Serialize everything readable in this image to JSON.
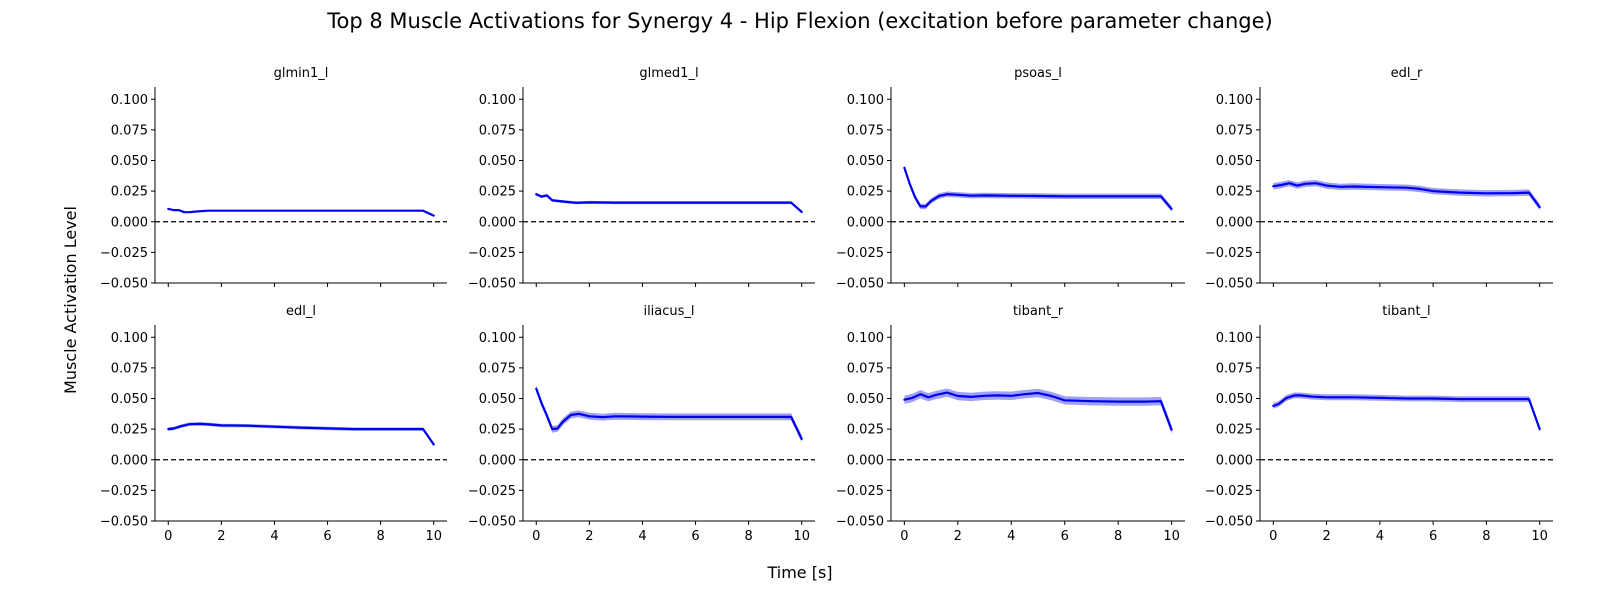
{
  "figure": {
    "title": "Top 8 Muscle Activations for Synergy 4 - Hip Flexion (excitation before parameter change)",
    "xlabel": "Time [s]",
    "ylabel": "Muscle Activation Level"
  },
  "colors": {
    "mean_line": "#0000ee",
    "band": "#8080f0",
    "zero_line": "#000000"
  },
  "chart_data": {
    "type": "line",
    "layout": "2x4 grid of subplots, shared axes",
    "xlim": [
      -0.5,
      10.5
    ],
    "ylim": [
      -0.05,
      0.11
    ],
    "x_ticks": [
      0,
      2,
      4,
      6,
      8,
      10
    ],
    "y_ticks": [
      -0.05,
      -0.025,
      0.0,
      0.025,
      0.05,
      0.075,
      0.1
    ],
    "y_tick_labels": [
      "−0.050",
      "−0.025",
      "0.000",
      "0.025",
      "0.050",
      "0.075",
      "0.100"
    ],
    "reference_line": {
      "y": 0,
      "style": "dashed"
    },
    "panels": [
      {
        "title": "glmin1_l",
        "x": [
          0,
          0.2,
          0.4,
          0.6,
          0.8,
          1.0,
          1.5,
          2,
          3,
          4,
          5,
          6,
          7,
          8,
          9,
          9.6,
          10
        ],
        "mean": [
          0.0105,
          0.0095,
          0.0095,
          0.0078,
          0.0078,
          0.0083,
          0.009,
          0.009,
          0.009,
          0.009,
          0.009,
          0.009,
          0.009,
          0.009,
          0.009,
          0.009,
          0.005
        ],
        "band": 0.0006
      },
      {
        "title": "glmed1_l",
        "x": [
          0,
          0.2,
          0.4,
          0.6,
          0.8,
          1.0,
          1.5,
          2,
          3,
          4,
          5,
          6,
          7,
          8,
          9,
          9.6,
          10
        ],
        "mean": [
          0.0225,
          0.0205,
          0.0215,
          0.0175,
          0.017,
          0.0165,
          0.0155,
          0.0158,
          0.0156,
          0.0156,
          0.0156,
          0.0156,
          0.0156,
          0.0156,
          0.0156,
          0.0156,
          0.008
        ],
        "band": 0.0012
      },
      {
        "title": "psoas_l",
        "x": [
          0,
          0.2,
          0.4,
          0.6,
          0.8,
          1.0,
          1.3,
          1.6,
          2,
          2.5,
          3,
          4,
          5,
          6,
          7,
          8,
          9,
          9.6,
          10
        ],
        "mean": [
          0.044,
          0.031,
          0.02,
          0.0125,
          0.0125,
          0.017,
          0.021,
          0.0225,
          0.022,
          0.0213,
          0.0215,
          0.0212,
          0.021,
          0.0208,
          0.0208,
          0.0208,
          0.0208,
          0.0208,
          0.0105
        ],
        "band": 0.0022
      },
      {
        "title": "edl_r",
        "x": [
          0,
          0.3,
          0.6,
          0.9,
          1.2,
          1.6,
          2,
          2.5,
          3,
          4,
          5,
          5.5,
          6,
          7,
          8,
          9,
          9.6,
          10
        ],
        "mean": [
          0.029,
          0.03,
          0.0315,
          0.0295,
          0.031,
          0.0315,
          0.0295,
          0.0285,
          0.0288,
          0.0282,
          0.0278,
          0.0268,
          0.025,
          0.0238,
          0.0232,
          0.0234,
          0.0238,
          0.012
        ],
        "band": 0.0026
      },
      {
        "title": "edl_l",
        "x": [
          0,
          0.2,
          0.5,
          0.8,
          1.2,
          1.6,
          2,
          3,
          4,
          5,
          6,
          7,
          8,
          9,
          9.6,
          10
        ],
        "mean": [
          0.025,
          0.0255,
          0.0275,
          0.029,
          0.0293,
          0.0288,
          0.028,
          0.0278,
          0.027,
          0.0262,
          0.0256,
          0.025,
          0.025,
          0.025,
          0.025,
          0.0125
        ],
        "band": 0.0014
      },
      {
        "title": "iliacus_l",
        "x": [
          0,
          0.2,
          0.4,
          0.6,
          0.8,
          1.0,
          1.3,
          1.6,
          2,
          2.5,
          3,
          4,
          5,
          6,
          7,
          8,
          9,
          9.6,
          10
        ],
        "mean": [
          0.058,
          0.046,
          0.036,
          0.025,
          0.0255,
          0.031,
          0.0365,
          0.0375,
          0.0355,
          0.0348,
          0.0355,
          0.0352,
          0.035,
          0.035,
          0.035,
          0.035,
          0.035,
          0.035,
          0.017
        ],
        "band": 0.0028
      },
      {
        "title": "tibant_r",
        "x": [
          0,
          0.3,
          0.6,
          0.9,
          1.2,
          1.6,
          2,
          2.5,
          3,
          3.5,
          4,
          4.5,
          5,
          5.5,
          6,
          7,
          8,
          9,
          9.6,
          10
        ],
        "mean": [
          0.049,
          0.0505,
          0.0535,
          0.051,
          0.053,
          0.0548,
          0.052,
          0.0513,
          0.0522,
          0.0525,
          0.0522,
          0.0535,
          0.0545,
          0.052,
          0.0485,
          0.0478,
          0.0475,
          0.0475,
          0.0478,
          0.0245
        ],
        "band": 0.0034
      },
      {
        "title": "tibant_l",
        "x": [
          0,
          0.2,
          0.5,
          0.8,
          1.0,
          1.5,
          2,
          3,
          4,
          5,
          6,
          7,
          8,
          9,
          9.6,
          10
        ],
        "mean": [
          0.044,
          0.0455,
          0.0505,
          0.0525,
          0.0525,
          0.0515,
          0.051,
          0.051,
          0.0505,
          0.05,
          0.05,
          0.0495,
          0.0495,
          0.0495,
          0.0495,
          0.025
        ],
        "band": 0.0024
      }
    ]
  }
}
